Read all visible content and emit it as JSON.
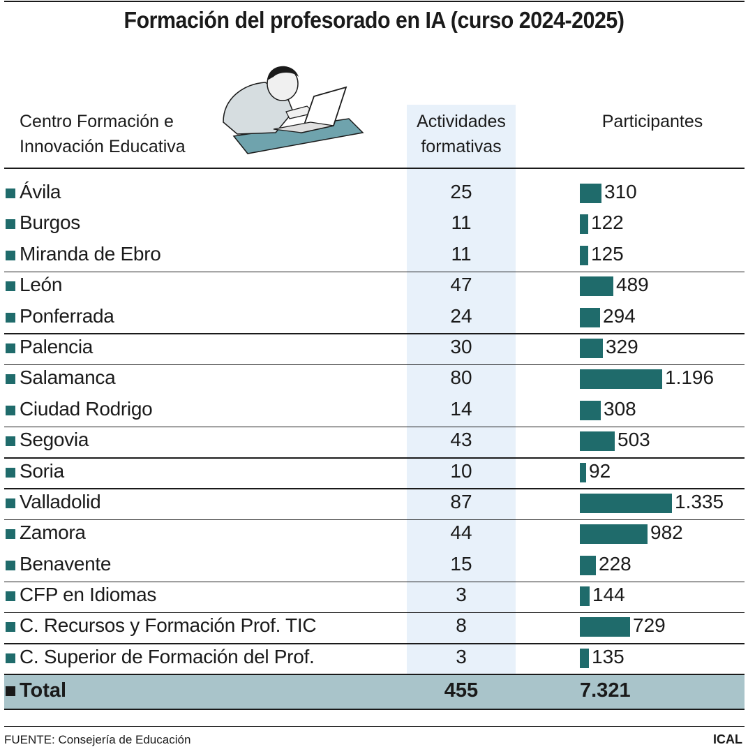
{
  "title": "Formación del profesorado en IA (curso 2024-2025)",
  "headers": {
    "center_line1": "Centro Formación e",
    "center_line2": "Innovación Educativa",
    "activities_line1": "Actividades",
    "activities_line2": "formativas",
    "participants": "Participantes"
  },
  "colors": {
    "bar": "#1f6b6b",
    "highlight": "#e8f1fa",
    "total_bg": "#a9c4ca"
  },
  "chart_data": {
    "type": "table",
    "title": "Formación del profesorado en IA (curso 2024-2025)",
    "columns": [
      "Centro Formación e Innovación Educativa",
      "Actividades formativas",
      "Participantes"
    ],
    "bar_column": "Participantes",
    "bar_max": 1335,
    "rows": [
      {
        "name": "Ávila",
        "activities": "25",
        "participants": "310",
        "value": 310,
        "sep_after": false
      },
      {
        "name": "Burgos",
        "activities": "11",
        "participants": "122",
        "value": 122,
        "sep_after": false
      },
      {
        "name": "Miranda de Ebro",
        "activities": "11",
        "participants": "125",
        "value": 125,
        "sep_after": true
      },
      {
        "name": "León",
        "activities": "47",
        "participants": "489",
        "value": 489,
        "sep_after": false
      },
      {
        "name": "Ponferrada",
        "activities": "24",
        "participants": "294",
        "value": 294,
        "sep_after": true
      },
      {
        "name": "Palencia",
        "activities": "30",
        "participants": "329",
        "value": 329,
        "sep_after": true
      },
      {
        "name": "Salamanca",
        "activities": "80",
        "participants": "1.196",
        "value": 1196,
        "sep_after": false
      },
      {
        "name": "Ciudad Rodrigo",
        "activities": "14",
        "participants": "308",
        "value": 308,
        "sep_after": true
      },
      {
        "name": "Segovia",
        "activities": "43",
        "participants": "503",
        "value": 503,
        "sep_after": true
      },
      {
        "name": "Soria",
        "activities": "10",
        "participants": "92",
        "value": 92,
        "sep_after": true
      },
      {
        "name": "Valladolid",
        "activities": "87",
        "participants": "1.335",
        "value": 1335,
        "sep_after": true
      },
      {
        "name": "Zamora",
        "activities": "44",
        "participants": "982",
        "value": 982,
        "sep_after": false
      },
      {
        "name": "Benavente",
        "activities": "15",
        "participants": "228",
        "value": 228,
        "sep_after": true
      },
      {
        "name": "CFP en Idiomas",
        "activities": "3",
        "participants": "144",
        "value": 144,
        "sep_after": true
      },
      {
        "name": "C. Recursos y Formación Prof. TIC",
        "activities": "8",
        "participants": "729",
        "value": 729,
        "sep_after": true
      },
      {
        "name": "C. Superior de Formación del Prof.",
        "activities": "3",
        "participants": "135",
        "value": 135,
        "sep_after": false
      }
    ],
    "total": {
      "label": "Total",
      "activities": "455",
      "participants": "7.321"
    }
  },
  "footer": {
    "source": "FUENTE: Consejería de Educación",
    "credit": "ICAL"
  }
}
